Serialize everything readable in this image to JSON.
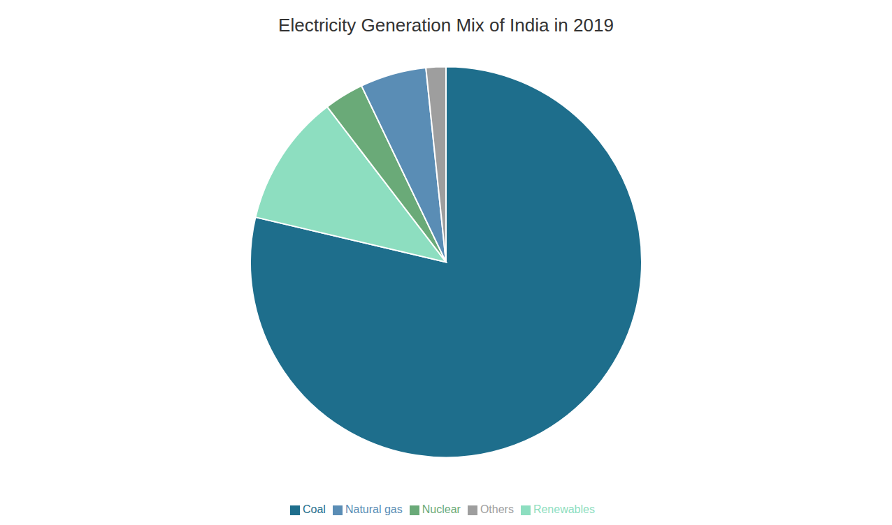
{
  "chart_data": {
    "type": "pie",
    "title": "Electricity Generation Mix of India in 2019",
    "categories": [
      "Coal",
      "Renewables",
      "Nuclear",
      "Natural gas",
      "Others"
    ],
    "values": [
      72.0,
      10.0,
      3.0,
      5.0,
      1.5
    ],
    "colors": [
      "#1e6e8c",
      "#8ddec0",
      "#6aaa78",
      "#5a8db5",
      "#9e9e9e"
    ],
    "legend": "bottom"
  }
}
